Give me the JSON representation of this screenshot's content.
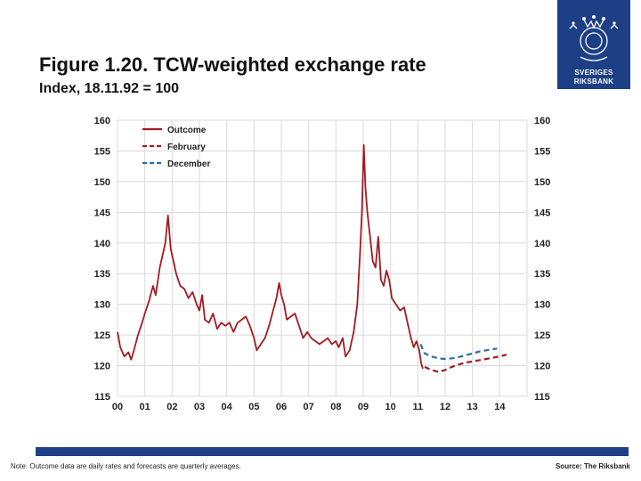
{
  "header": {
    "title": "Figure 1.20. TCW-weighted exchange rate",
    "subtitle": "Index, 18.11.92 = 100"
  },
  "logo": {
    "line1": "SVERIGES",
    "line2": "RIKSBANK",
    "color": "#1c3f86"
  },
  "footer": {
    "note": "Note. Outcome data are daily rates and forecasts are quarterly averages.",
    "source": "Source: The Riksbank",
    "bar_color": "#1c3f86"
  },
  "chart_data": {
    "type": "line",
    "ylim": [
      115,
      160
    ],
    "yticks": [
      115,
      120,
      125,
      130,
      135,
      140,
      145,
      150,
      155,
      160
    ],
    "xlim": [
      2000,
      2015
    ],
    "xtick_years": [
      2000,
      2001,
      2002,
      2003,
      2004,
      2005,
      2006,
      2007,
      2008,
      2009,
      2010,
      2011,
      2012,
      2013,
      2014
    ],
    "xtick_labels": [
      "00",
      "01",
      "02",
      "03",
      "04",
      "05",
      "06",
      "07",
      "08",
      "09",
      "10",
      "11",
      "12",
      "13",
      "14"
    ],
    "grid": true,
    "legend_position": "top-left",
    "series": [
      {
        "name": "Outcome",
        "color": "#a31a22",
        "style": "solid",
        "points": [
          [
            2000.0,
            125.5
          ],
          [
            2000.1,
            123.0
          ],
          [
            2000.25,
            121.5
          ],
          [
            2000.4,
            122.2
          ],
          [
            2000.5,
            121.0
          ],
          [
            2000.6,
            122.5
          ],
          [
            2000.75,
            125.0
          ],
          [
            2000.9,
            127.0
          ],
          [
            2001.0,
            128.5
          ],
          [
            2001.15,
            130.5
          ],
          [
            2001.3,
            133.0
          ],
          [
            2001.4,
            131.5
          ],
          [
            2001.55,
            136.0
          ],
          [
            2001.65,
            138.0
          ],
          [
            2001.75,
            140.0
          ],
          [
            2001.85,
            144.5
          ],
          [
            2001.95,
            139.0
          ],
          [
            2002.05,
            137.0
          ],
          [
            2002.15,
            135.0
          ],
          [
            2002.3,
            133.0
          ],
          [
            2002.45,
            132.5
          ],
          [
            2002.6,
            131.0
          ],
          [
            2002.75,
            132.0
          ],
          [
            2002.9,
            130.0
          ],
          [
            2003.0,
            129.0
          ],
          [
            2003.1,
            131.5
          ],
          [
            2003.2,
            127.5
          ],
          [
            2003.35,
            127.0
          ],
          [
            2003.5,
            128.5
          ],
          [
            2003.65,
            126.0
          ],
          [
            2003.8,
            127.0
          ],
          [
            2003.95,
            126.5
          ],
          [
            2004.1,
            127.0
          ],
          [
            2004.25,
            125.5
          ],
          [
            2004.4,
            127.0
          ],
          [
            2004.55,
            127.5
          ],
          [
            2004.7,
            128.0
          ],
          [
            2004.85,
            126.5
          ],
          [
            2005.0,
            124.5
          ],
          [
            2005.1,
            122.5
          ],
          [
            2005.25,
            123.5
          ],
          [
            2005.4,
            124.5
          ],
          [
            2005.55,
            126.5
          ],
          [
            2005.7,
            129.0
          ],
          [
            2005.82,
            131.0
          ],
          [
            2005.92,
            133.5
          ],
          [
            2006.0,
            131.5
          ],
          [
            2006.1,
            130.0
          ],
          [
            2006.2,
            127.5
          ],
          [
            2006.35,
            128.0
          ],
          [
            2006.5,
            128.5
          ],
          [
            2006.65,
            126.5
          ],
          [
            2006.8,
            124.5
          ],
          [
            2006.95,
            125.5
          ],
          [
            2007.1,
            124.5
          ],
          [
            2007.25,
            124.0
          ],
          [
            2007.4,
            123.5
          ],
          [
            2007.55,
            124.0
          ],
          [
            2007.7,
            124.5
          ],
          [
            2007.85,
            123.5
          ],
          [
            2008.0,
            124.0
          ],
          [
            2008.1,
            123.0
          ],
          [
            2008.25,
            124.5
          ],
          [
            2008.35,
            121.5
          ],
          [
            2008.5,
            122.5
          ],
          [
            2008.65,
            125.5
          ],
          [
            2008.78,
            130.0
          ],
          [
            2008.88,
            138.0
          ],
          [
            2008.95,
            145.0
          ],
          [
            2009.02,
            156.0
          ],
          [
            2009.08,
            149.0
          ],
          [
            2009.15,
            145.0
          ],
          [
            2009.25,
            141.0
          ],
          [
            2009.35,
            137.0
          ],
          [
            2009.45,
            136.0
          ],
          [
            2009.55,
            141.0
          ],
          [
            2009.65,
            134.0
          ],
          [
            2009.75,
            133.0
          ],
          [
            2009.85,
            135.5
          ],
          [
            2009.95,
            134.0
          ],
          [
            2010.05,
            131.0
          ],
          [
            2010.2,
            130.0
          ],
          [
            2010.35,
            129.0
          ],
          [
            2010.5,
            129.5
          ],
          [
            2010.62,
            127.0
          ],
          [
            2010.75,
            124.5
          ],
          [
            2010.85,
            123.0
          ],
          [
            2010.95,
            124.0
          ],
          [
            2011.05,
            122.5
          ],
          [
            2011.12,
            120.5
          ],
          [
            2011.18,
            119.5
          ]
        ]
      },
      {
        "name": "February",
        "color": "#a31a22",
        "style": "dashed",
        "points": [
          [
            2011.25,
            119.8
          ],
          [
            2011.5,
            119.3
          ],
          [
            2011.75,
            119.0
          ],
          [
            2012.0,
            119.3
          ],
          [
            2012.25,
            119.8
          ],
          [
            2012.5,
            120.2
          ],
          [
            2012.75,
            120.5
          ],
          [
            2013.0,
            120.7
          ],
          [
            2013.25,
            120.9
          ],
          [
            2013.5,
            121.1
          ],
          [
            2013.75,
            121.3
          ],
          [
            2014.0,
            121.5
          ],
          [
            2014.25,
            121.8
          ]
        ]
      },
      {
        "name": "December",
        "color": "#2f6ba9",
        "style": "dashed",
        "points": [
          [
            2011.1,
            123.5
          ],
          [
            2011.25,
            122.0
          ],
          [
            2011.5,
            121.5
          ],
          [
            2011.75,
            121.2
          ],
          [
            2012.0,
            121.1
          ],
          [
            2012.25,
            121.2
          ],
          [
            2012.5,
            121.4
          ],
          [
            2012.75,
            121.7
          ],
          [
            2013.0,
            122.0
          ],
          [
            2013.25,
            122.3
          ],
          [
            2013.5,
            122.5
          ],
          [
            2013.75,
            122.7
          ],
          [
            2013.9,
            122.8
          ]
        ]
      }
    ]
  }
}
